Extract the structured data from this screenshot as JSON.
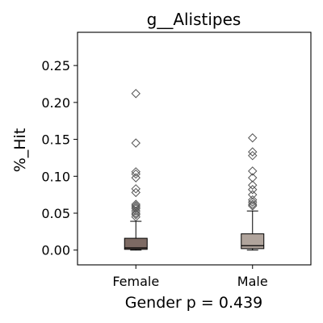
{
  "chart_data": {
    "type": "box",
    "title": "g__Alistipes",
    "xlabel": "Gender p = 0.439",
    "ylabel": "%_Hit",
    "ylim": [
      -0.02,
      0.295
    ],
    "yticks": [
      "0.00",
      "0.05",
      "0.10",
      "0.15",
      "0.20",
      "0.25"
    ],
    "ytick_values": [
      0.0,
      0.05,
      0.1,
      0.15,
      0.2,
      0.25
    ],
    "grid": false,
    "categories": [
      "Female",
      "Male"
    ],
    "boxes": [
      {
        "category": "Female",
        "color": "#7d6a63",
        "whisker_low": 0.0,
        "q1": 0.001,
        "median": 0.003,
        "q3": 0.016,
        "whisker_high": 0.039,
        "outliers": [
          0.045,
          0.048,
          0.05,
          0.053,
          0.056,
          0.058,
          0.06,
          0.062,
          0.078,
          0.083,
          0.098,
          0.103,
          0.106,
          0.145,
          0.212
        ]
      },
      {
        "category": "Male",
        "color": "#b0a49c",
        "whisker_low": 0.0,
        "q1": 0.002,
        "median": 0.006,
        "q3": 0.022,
        "whisker_high": 0.053,
        "outliers": [
          0.06,
          0.062,
          0.065,
          0.068,
          0.075,
          0.082,
          0.088,
          0.098,
          0.107,
          0.128,
          0.133,
          0.152
        ]
      }
    ]
  }
}
